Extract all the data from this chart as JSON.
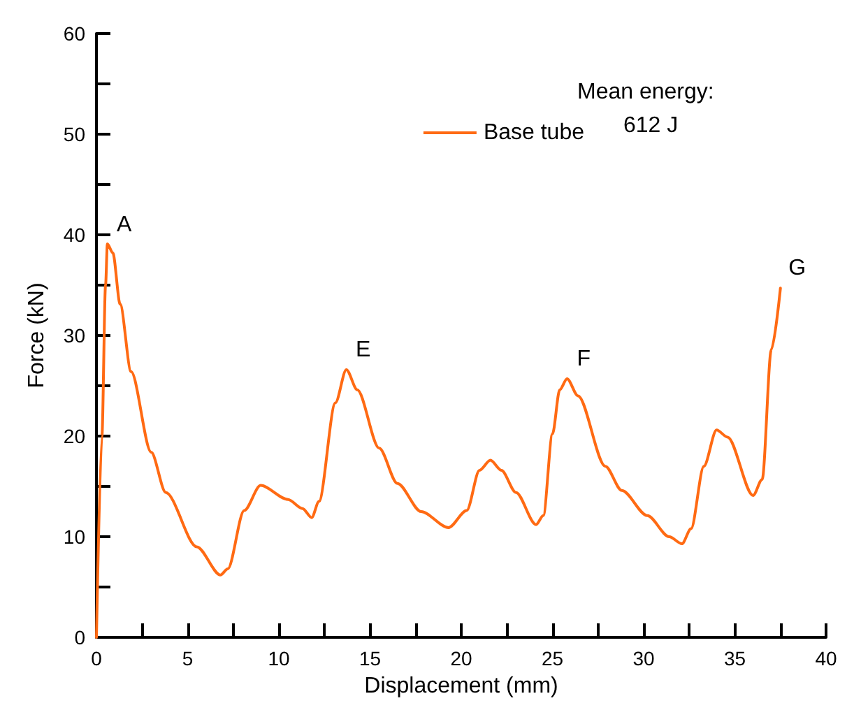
{
  "chart_data": {
    "type": "line",
    "xlabel": "Displacement (mm)",
    "ylabel": "Force (kN)",
    "legend_title": "Mean energy:",
    "legend": "top right",
    "grid": false,
    "marker": "none",
    "line_style": "solid",
    "xlim": [
      0,
      40
    ],
    "ylim": [
      0,
      60
    ],
    "xticks": [
      0,
      {
        "value": 2.5,
        "label": null
      },
      5,
      {
        "value": 7.5,
        "label": null
      },
      10,
      {
        "value": 12.5,
        "label": null
      },
      15,
      {
        "value": 17.5,
        "label": null
      },
      20,
      {
        "value": 22.5,
        "label": null
      },
      25,
      {
        "value": 27.5,
        "label": null
      },
      30,
      {
        "value": 32.5,
        "label": null
      },
      35,
      {
        "value": 37.5,
        "label": null
      },
      40
    ],
    "yticks": [
      0,
      {
        "value": 5,
        "label": null
      },
      10,
      {
        "value": 15,
        "label": null
      },
      20,
      {
        "value": 25,
        "label": null
      },
      30,
      {
        "value": 35,
        "label": null
      },
      40,
      {
        "value": 45,
        "label": null
      },
      50,
      {
        "value": 55,
        "label": null
      },
      60
    ],
    "annotations": [
      "612 J",
      {
        "text": "A",
        "x": 0.6,
        "y": 39
      },
      {
        "text": "E",
        "x": 13.7,
        "y": 26.6
      },
      {
        "text": "F",
        "x": 25.8,
        "y": 25.7
      },
      {
        "text": "G",
        "x": 37.5,
        "y": 34.7
      }
    ],
    "series": [
      {
        "name": "Base tube",
        "color": "#ff6a13",
        "x": [
          0,
          0.3,
          0.5,
          0.6,
          0.9,
          1.3,
          1.9,
          3,
          3.8,
          5.5,
          6.8,
          7.2,
          8.1,
          9,
          10.5,
          11.3,
          11.8,
          12.2,
          13.1,
          13.7,
          14.3,
          15.5,
          16.5,
          17.8,
          19.3,
          20.3,
          21,
          21.6,
          22.2,
          23,
          24.1,
          24.5,
          25,
          25.4,
          25.8,
          26.4,
          27.9,
          28.8,
          30.2,
          31.4,
          32.1,
          32.6,
          33.3,
          34,
          34.6,
          36,
          36.5,
          37,
          37.5
        ],
        "values": [
          0,
          20,
          35,
          39.1,
          38.2,
          33.1,
          26.4,
          18.4,
          14.4,
          9,
          6.2,
          6.8,
          12.6,
          15.1,
          13.7,
          12.8,
          11.9,
          13.5,
          23.3,
          26.6,
          24.6,
          18.8,
          15.3,
          12.5,
          10.9,
          12.6,
          16.6,
          17.6,
          16.6,
          14.4,
          11.2,
          12.1,
          20.2,
          24.6,
          25.7,
          24,
          17,
          14.6,
          12.1,
          10,
          9.3,
          10.8,
          17,
          20.6,
          19.9,
          14.1,
          15.7,
          28.6,
          34.7
        ]
      }
    ]
  }
}
